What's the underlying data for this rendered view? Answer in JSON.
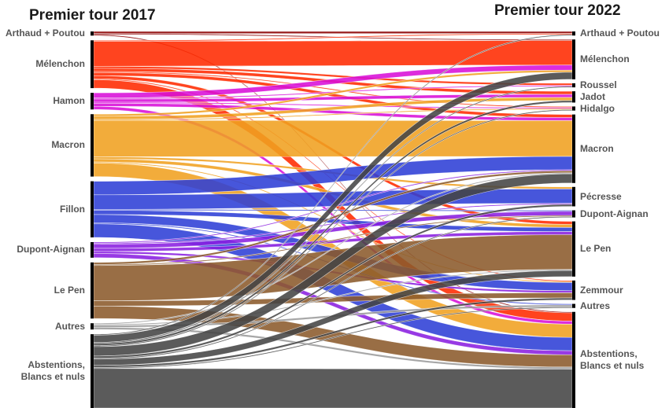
{
  "titles": {
    "left": "Premier tour 2017",
    "right": "Premier tour 2022"
  },
  "left_nodes": [
    {
      "id": "ap17",
      "label": "Arthaud + Poutou",
      "color": "#8b0000"
    },
    {
      "id": "mel17",
      "label": "Mélenchon",
      "color": "#ff2a00"
    },
    {
      "id": "ham17",
      "label": "Hamon",
      "color": "#d80fd8"
    },
    {
      "id": "mac17",
      "label": "Macron",
      "color": "#f0a020"
    },
    {
      "id": "fil17",
      "label": "Fillon",
      "color": "#2d3fd6"
    },
    {
      "id": "da17",
      "label": "Dupont-Aignan",
      "color": "#8a1fe0"
    },
    {
      "id": "lp17",
      "label": "Le Pen",
      "color": "#8b5a2b"
    },
    {
      "id": "aut17",
      "label": "Autres",
      "color": "#9a9a9a"
    },
    {
      "id": "abs17",
      "label": "Abstentions,\nBlancs et nuls",
      "color": "#444444"
    }
  ],
  "right_nodes": [
    {
      "id": "ap22",
      "label": "Arthaud + Poutou"
    },
    {
      "id": "mel22",
      "label": "Mélenchon"
    },
    {
      "id": "rou22",
      "label": "Roussel"
    },
    {
      "id": "jad22",
      "label": "Jadot"
    },
    {
      "id": "hid22",
      "label": "Hidalgo"
    },
    {
      "id": "mac22",
      "label": "Macron"
    },
    {
      "id": "pec22",
      "label": "Pécresse"
    },
    {
      "id": "da22",
      "label": "Dupont-Aignan"
    },
    {
      "id": "lp22",
      "label": "Le Pen"
    },
    {
      "id": "zem22",
      "label": "Zemmour"
    },
    {
      "id": "aut22",
      "label": "Autres"
    },
    {
      "id": "abs22",
      "label": "Abstentions,\nBlancs et nuls"
    }
  ],
  "flows": [
    {
      "from": "ap17",
      "to": "ap22",
      "value": 2
    },
    {
      "from": "ap17",
      "to": "mel22",
      "value": 1
    },
    {
      "from": "ap17",
      "to": "abs22",
      "value": 1
    },
    {
      "from": "mel17",
      "to": "ap22",
      "value": 1
    },
    {
      "from": "mel17",
      "to": "mel22",
      "value": 24
    },
    {
      "from": "mel17",
      "to": "rou22",
      "value": 2
    },
    {
      "from": "mel17",
      "to": "jad22",
      "value": 3
    },
    {
      "from": "mel17",
      "to": "hid22",
      "value": 1
    },
    {
      "from": "mel17",
      "to": "mac22",
      "value": 3
    },
    {
      "from": "mel17",
      "to": "lp22",
      "value": 3
    },
    {
      "from": "mel17",
      "to": "zem22",
      "value": 1
    },
    {
      "from": "mel17",
      "to": "abs22",
      "value": 8
    },
    {
      "from": "ham17",
      "to": "mel22",
      "value": 5
    },
    {
      "from": "ham17",
      "to": "rou22",
      "value": 1
    },
    {
      "from": "ham17",
      "to": "jad22",
      "value": 3
    },
    {
      "from": "ham17",
      "to": "hid22",
      "value": 1
    },
    {
      "from": "ham17",
      "to": "mac22",
      "value": 3
    },
    {
      "from": "ham17",
      "to": "abs22",
      "value": 3
    },
    {
      "from": "mac17",
      "to": "mel22",
      "value": 2
    },
    {
      "from": "mac17",
      "to": "jad22",
      "value": 3
    },
    {
      "from": "mac17",
      "to": "hid22",
      "value": 1
    },
    {
      "from": "mac17",
      "to": "mac22",
      "value": 35
    },
    {
      "from": "mac17",
      "to": "pec22",
      "value": 2
    },
    {
      "from": "mac17",
      "to": "lp22",
      "value": 3
    },
    {
      "from": "mac17",
      "to": "zem22",
      "value": 1
    },
    {
      "from": "mac17",
      "to": "abs22",
      "value": 13
    },
    {
      "from": "fil17",
      "to": "mac22",
      "value": 13
    },
    {
      "from": "fil17",
      "to": "pec22",
      "value": 14
    },
    {
      "from": "fil17",
      "to": "da22",
      "value": 1
    },
    {
      "from": "fil17",
      "to": "lp22",
      "value": 4
    },
    {
      "from": "fil17",
      "to": "zem22",
      "value": 8
    },
    {
      "from": "fil17",
      "to": "aut22",
      "value": 1
    },
    {
      "from": "fil17",
      "to": "abs22",
      "value": 13
    },
    {
      "from": "da17",
      "to": "mac22",
      "value": 1
    },
    {
      "from": "da17",
      "to": "pec22",
      "value": 1
    },
    {
      "from": "da17",
      "to": "da22",
      "value": 4
    },
    {
      "from": "da17",
      "to": "lp22",
      "value": 3
    },
    {
      "from": "da17",
      "to": "zem22",
      "value": 2
    },
    {
      "from": "da17",
      "to": "abs22",
      "value": 4
    },
    {
      "from": "lp17",
      "to": "mac22",
      "value": 2
    },
    {
      "from": "lp17",
      "to": "da22",
      "value": 1
    },
    {
      "from": "lp17",
      "to": "lp22",
      "value": 34
    },
    {
      "from": "lp17",
      "to": "zem22",
      "value": 5
    },
    {
      "from": "lp17",
      "to": "abs22",
      "value": 12
    },
    {
      "from": "aut17",
      "to": "mac22",
      "value": 1
    },
    {
      "from": "aut17",
      "to": "lp22",
      "value": 1
    },
    {
      "from": "aut17",
      "to": "aut22",
      "value": 2
    },
    {
      "from": "aut17",
      "to": "abs22",
      "value": 2
    },
    {
      "from": "abs17",
      "to": "ap22",
      "value": 1
    },
    {
      "from": "abs17",
      "to": "mel22",
      "value": 7
    },
    {
      "from": "abs17",
      "to": "rou22",
      "value": 1
    },
    {
      "from": "abs17",
      "to": "jad22",
      "value": 2
    },
    {
      "from": "abs17",
      "to": "hid22",
      "value": 1
    },
    {
      "from": "abs17",
      "to": "mac22",
      "value": 9
    },
    {
      "from": "abs17",
      "to": "pec22",
      "value": 2
    },
    {
      "from": "abs17",
      "to": "da22",
      "value": 1
    },
    {
      "from": "abs17",
      "to": "lp22",
      "value": 6
    },
    {
      "from": "abs17",
      "to": "zem22",
      "value": 2
    },
    {
      "from": "abs17",
      "to": "aut22",
      "value": 1
    },
    {
      "from": "abs17",
      "to": "abs22",
      "value": 38
    }
  ]
}
